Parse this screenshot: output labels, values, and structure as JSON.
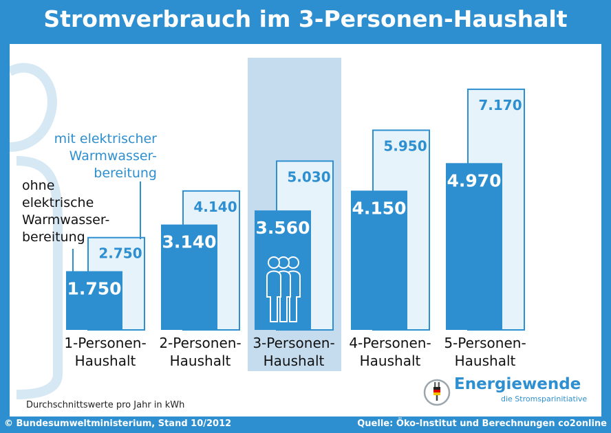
{
  "title": "Stromverbrauch im 3-Personen-Haushalt",
  "footer": {
    "left": "© Bundesumweltministerium, Stand 10/2012",
    "right": "Quelle: Öko-Institut und Berechnungen co2online"
  },
  "note": "Durchschnittswerte pro Jahr in kWh",
  "annotations": {
    "without_lines": [
      "ohne",
      "elektrische",
      "Warmwasser-",
      "bereitung"
    ],
    "with_lines": [
      "mit elektrischer",
      "Warmwasser-",
      "bereitung"
    ]
  },
  "logo": {
    "title": "Energiewende",
    "subtitle": "die Stromsparinitiative",
    "icon": "plug-flag-icon"
  },
  "colors": {
    "background": "#2d8fd0",
    "bar_dark": "#2d8fd0",
    "bar_light": "#e6f3fb",
    "highlight": "#c5dcef",
    "people_icon": "#ffffff"
  },
  "chart_data": {
    "type": "bar",
    "categories": [
      [
        "1-Personen-",
        "Haushalt"
      ],
      [
        "2-Personen-",
        "Haushalt"
      ],
      [
        "3-Personen-",
        "Haushalt"
      ],
      [
        "4-Personen-",
        "Haushalt"
      ],
      [
        "5-Personen-",
        "Haushalt"
      ]
    ],
    "series": [
      {
        "values": [
          1750,
          3140,
          3560,
          4150,
          4970
        ],
        "labels": [
          "1.750",
          "3.140",
          "3.560",
          "4.150",
          "4.970"
        ]
      },
      {
        "values": [
          2750,
          4140,
          5030,
          5950,
          7170
        ],
        "labels": [
          "2.750",
          "4.140",
          "5.030",
          "5.950",
          "7.170"
        ]
      }
    ],
    "highlight_category": 2,
    "highlight_icon": "three-people-icon",
    "ylim": [
      0,
      7700
    ],
    "grid": false,
    "legend": "annotations-left"
  }
}
